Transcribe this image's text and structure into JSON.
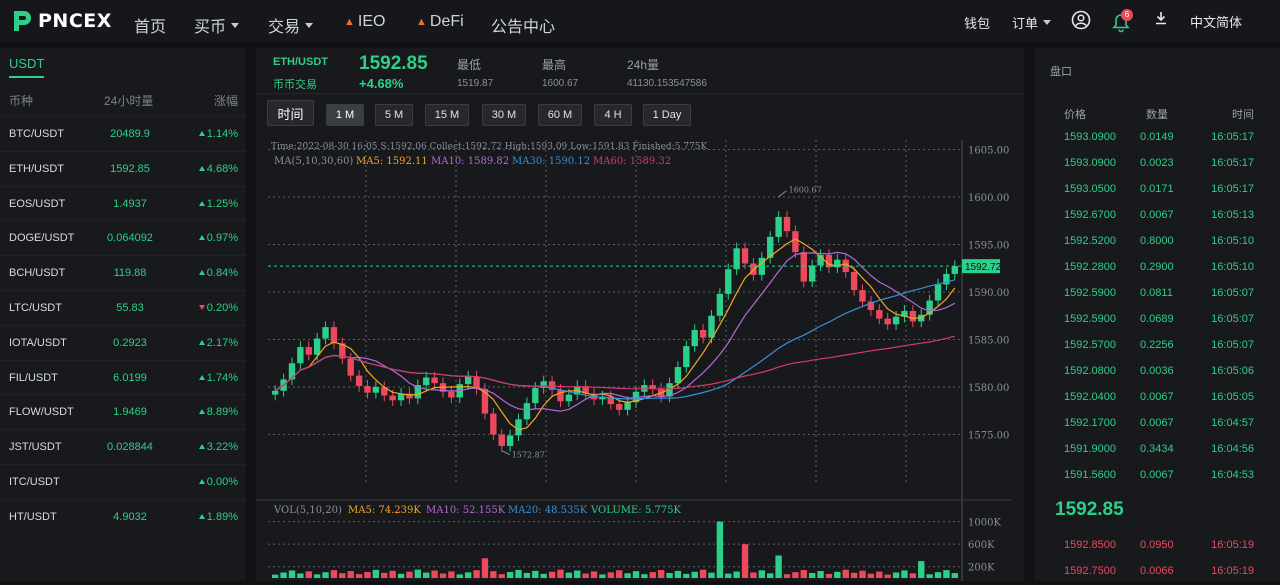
{
  "logo": {
    "text": "PNCEX"
  },
  "nav": {
    "items": [
      {
        "label": "首页",
        "x": 134,
        "caret": false
      },
      {
        "label": "买币",
        "x": 194,
        "caret": true
      },
      {
        "label": "交易",
        "x": 268,
        "caret": true
      },
      {
        "label": "IEO",
        "x": 344,
        "caret": false,
        "fire": true
      },
      {
        "label": "DeFi",
        "x": 416,
        "caret": false,
        "fire": true
      },
      {
        "label": "公告中心",
        "x": 491,
        "caret": false
      }
    ]
  },
  "topright": {
    "wallet": "钱包",
    "orders": "订单",
    "badge": "6",
    "language": "中文简体"
  },
  "markets": {
    "tab": "USDT",
    "headers": {
      "coin": "币种",
      "volume": "24小时量",
      "change": "涨幅"
    },
    "rows": [
      {
        "symbol": "BTC/USDT",
        "volume": "20489.9",
        "change": "1.14%",
        "dir": "up"
      },
      {
        "symbol": "ETH/USDT",
        "volume": "1592.85",
        "change": "4.68%",
        "dir": "up"
      },
      {
        "symbol": "EOS/USDT",
        "volume": "1.4937",
        "change": "1.25%",
        "dir": "up"
      },
      {
        "symbol": "DOGE/USDT",
        "volume": "0.064092",
        "change": "0.97%",
        "dir": "up"
      },
      {
        "symbol": "BCH/USDT",
        "volume": "119.88",
        "change": "0.84%",
        "dir": "up"
      },
      {
        "symbol": "LTC/USDT",
        "volume": "55.83",
        "change": "0.20%",
        "dir": "down"
      },
      {
        "symbol": "IOTA/USDT",
        "volume": "0.2923",
        "change": "2.17%",
        "dir": "up"
      },
      {
        "symbol": "FIL/USDT",
        "volume": "6.0199",
        "change": "1.74%",
        "dir": "up"
      },
      {
        "symbol": "FLOW/USDT",
        "volume": "1.9469",
        "change": "8.89%",
        "dir": "up"
      },
      {
        "symbol": "JST/USDT",
        "volume": "0.028844",
        "change": "3.22%",
        "dir": "up"
      },
      {
        "symbol": "ITC/USDT",
        "volume": "",
        "change": "0.00%",
        "dir": "up"
      },
      {
        "symbol": "HT/USDT",
        "volume": "4.9032",
        "change": "1.89%",
        "dir": "up"
      }
    ]
  },
  "ticker": {
    "pair": "ETH/USDT",
    "market_type": "币币交易",
    "price": "1592.85",
    "change": "+4.68%",
    "low_label": "最低",
    "low": "1519.87",
    "high_label": "最高",
    "high": "1600.67",
    "vol_label": "24h量",
    "vol": "41130.153547586"
  },
  "timeframes": {
    "time_label": "时间",
    "options": [
      "1 M",
      "5 M",
      "15 M",
      "30 M",
      "60 M",
      "4 H",
      "1 Day"
    ],
    "active": "1 M"
  },
  "chart_info": {
    "line1": "Time:2022-08-30 16:05    S:1592.06    Collect:1592.72    High:1593.09    Low:1591.83    Finished:5.775K",
    "ma_label": "MA(5,10,30,60)",
    "ma5": "MA5: 1592.11",
    "ma10": "MA10: 1589.82",
    "ma30": "MA30: 1590.12",
    "ma60": "MA60: 1589.32",
    "high_mark": "1600.67",
    "low_mark": "1572.87",
    "current_price": "1592.72",
    "y_ticks": [
      "1605.00",
      "1600.00",
      "1595.00",
      "1590.00",
      "1585.00",
      "1580.00",
      "1575.00"
    ],
    "vol_label": "VOL(5,10,20)",
    "vol_ma5": "MA5: 74.239K",
    "vol_ma10": "MA10: 52.155K",
    "vol_ma20": "MA20: 48.535K",
    "vol_volume": "VOLUME: 5.775K",
    "vol_ticks": [
      "1000K",
      "600K",
      "200K"
    ]
  },
  "colors": {
    "up": "#2bd08a",
    "down": "#ec4a5c",
    "ma5": "#f5a623",
    "ma10": "#b36ad6",
    "ma30": "#3a8fd9",
    "ma60": "#d43a6c"
  },
  "chart_data": {
    "type": "candlestick",
    "ylim": [
      1570,
      1606
    ],
    "close": [
      1579.6,
      1580.8,
      1582.5,
      1584.2,
      1583.4,
      1585.1,
      1586.3,
      1584.6,
      1583.0,
      1581.2,
      1580.1,
      1579.4,
      1580.0,
      1579.1,
      1578.6,
      1579.3,
      1578.8,
      1580.2,
      1581.0,
      1580.4,
      1579.5,
      1578.9,
      1580.3,
      1581.1,
      1579.8,
      1577.2,
      1575.0,
      1573.8,
      1574.9,
      1576.6,
      1578.3,
      1579.9,
      1580.6,
      1579.7,
      1578.5,
      1579.2,
      1580.1,
      1579.3,
      1578.7,
      1579.0,
      1578.2,
      1577.6,
      1578.4,
      1579.5,
      1580.2,
      1579.8,
      1579.0,
      1580.4,
      1582.1,
      1584.3,
      1586.0,
      1585.2,
      1587.5,
      1589.8,
      1592.4,
      1594.6,
      1593.0,
      1591.8,
      1593.6,
      1595.8,
      1597.9,
      1596.4,
      1594.2,
      1591.1,
      1592.8,
      1593.9,
      1592.6,
      1593.4,
      1592.1,
      1590.2,
      1589.0,
      1588.1,
      1587.2,
      1586.6,
      1587.4,
      1588.0,
      1586.9,
      1587.6,
      1589.1,
      1590.8,
      1591.9,
      1592.72
    ],
    "volume_ticks_k": [
      1000,
      600,
      200
    ]
  },
  "orderbook": {
    "title": "盘口",
    "headers": {
      "price": "价格",
      "qty": "数量",
      "time": "时间"
    },
    "rows": [
      {
        "price": "1593.0900",
        "qty": "0.0149",
        "time": "16:05:17",
        "side": "buy"
      },
      {
        "price": "1593.0900",
        "qty": "0.0023",
        "time": "16:05:17",
        "side": "buy"
      },
      {
        "price": "1593.0500",
        "qty": "0.0171",
        "time": "16:05:17",
        "side": "buy"
      },
      {
        "price": "1592.6700",
        "qty": "0.0067",
        "time": "16:05:13",
        "side": "buy"
      },
      {
        "price": "1592.5200",
        "qty": "0.8000",
        "time": "16:05:10",
        "side": "buy"
      },
      {
        "price": "1592.2800",
        "qty": "0.2900",
        "time": "16:05:10",
        "side": "buy"
      },
      {
        "price": "1592.5900",
        "qty": "0.0811",
        "time": "16:05:07",
        "side": "buy"
      },
      {
        "price": "1592.5900",
        "qty": "0.0689",
        "time": "16:05:07",
        "side": "buy"
      },
      {
        "price": "1592.5700",
        "qty": "0.2256",
        "time": "16:05:07",
        "side": "buy"
      },
      {
        "price": "1592.0800",
        "qty": "0.0036",
        "time": "16:05:06",
        "side": "buy"
      },
      {
        "price": "1592.0400",
        "qty": "0.0067",
        "time": "16:05:05",
        "side": "buy"
      },
      {
        "price": "1592.1700",
        "qty": "0.0067",
        "time": "16:04:57",
        "side": "buy"
      },
      {
        "price": "1591.9000",
        "qty": "0.3434",
        "time": "16:04:56",
        "side": "buy"
      },
      {
        "price": "1591.5600",
        "qty": "0.0067",
        "time": "16:04:53",
        "side": "buy"
      }
    ],
    "last_price": "1592.85",
    "sell_rows": [
      {
        "price": "1592.8500",
        "qty": "0.0950",
        "time": "16:05:19",
        "side": "sell"
      },
      {
        "price": "1592.7500",
        "qty": "0.0066",
        "time": "16:05:19",
        "side": "sell"
      }
    ]
  }
}
